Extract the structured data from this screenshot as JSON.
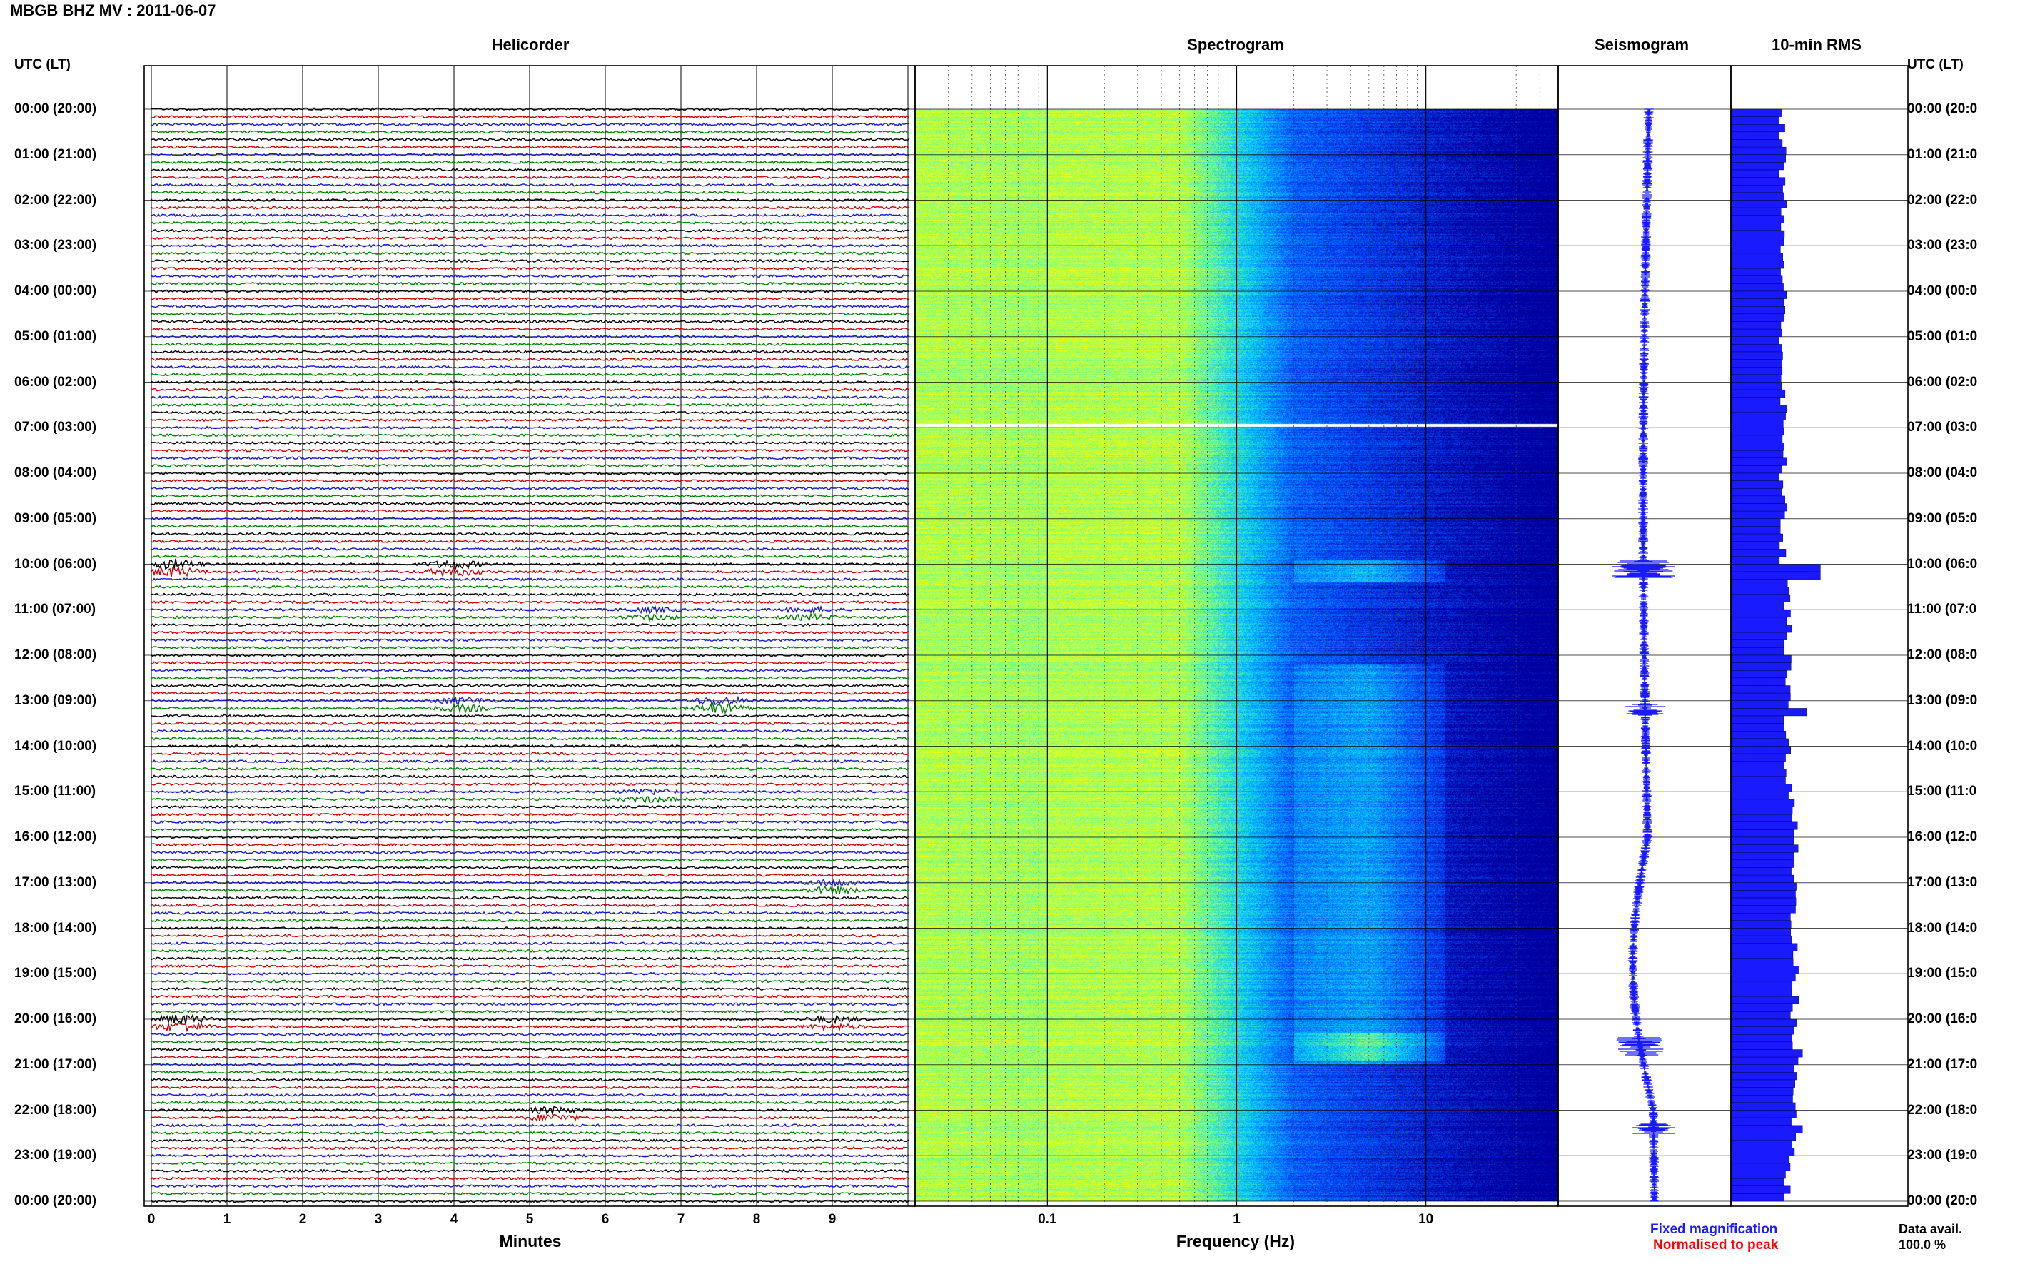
{
  "title": "MBGB BHZ MV : 2011-06-07",
  "panels": {
    "helicorder": "Helicorder",
    "spectrogram": "Spectrogram",
    "seismogram": "Seismogram",
    "rms": "10-min RMS"
  },
  "time_axis": {
    "left_header": "UTC (LT)",
    "right_header": "UTC (LT)",
    "labels": [
      "00:00 (20:00)",
      "01:00 (21:00)",
      "02:00 (22:00)",
      "03:00 (23:00)",
      "04:00 (00:00)",
      "05:00 (01:00)",
      "06:00 (02:00)",
      "07:00 (03:00)",
      "08:00 (04:00)",
      "09:00 (05:00)",
      "10:00 (06:00)",
      "11:00 (07:00)",
      "12:00 (08:00)",
      "13:00 (09:00)",
      "14:00 (10:00)",
      "15:00 (11:00)",
      "16:00 (12:00)",
      "17:00 (13:00)",
      "18:00 (14:00)",
      "19:00 (15:00)",
      "20:00 (16:00)",
      "21:00 (17:00)",
      "22:00 (18:00)",
      "23:00 (19:00)",
      "00:00 (20:00)"
    ],
    "right_labels": [
      "00:00 (20:0",
      "01:00 (21:0",
      "02:00 (22:0",
      "03:00 (23:0",
      "04:00 (00:0",
      "05:00 (01:0",
      "06:00 (02:0",
      "07:00 (03:0",
      "08:00 (04:0",
      "09:00 (05:0",
      "10:00 (06:0",
      "11:00 (07:0",
      "12:00 (08:0",
      "13:00 (09:0",
      "14:00 (10:0",
      "15:00 (11:0",
      "16:00 (12:0",
      "17:00 (13:0",
      "18:00 (14:0",
      "19:00 (15:0",
      "20:00 (16:0",
      "21:00 (17:0",
      "22:00 (18:0",
      "23:00 (19:0",
      "00:00 (20:0"
    ]
  },
  "chart_data": [
    {
      "type": "line",
      "panel": "Helicorder",
      "xlabel": "Minutes",
      "x_ticks": [
        "0",
        "1",
        "2",
        "3",
        "4",
        "5",
        "6",
        "7",
        "8",
        "9"
      ],
      "xlim": [
        0,
        10
      ],
      "trace_colors": [
        "#000000",
        "#cc0000",
        "#1a1acc",
        "#008000"
      ],
      "traces_per_hour": 6,
      "events": [
        {
          "hour_row": 10,
          "minute": 0.3,
          "amplitude": 2.2
        },
        {
          "hour_row": 10,
          "minute": 4.0,
          "amplitude": 2.0
        },
        {
          "hour_row": 11,
          "minute": 6.6,
          "amplitude": 1.2
        },
        {
          "hour_row": 11,
          "minute": 8.7,
          "amplitude": 1.2
        },
        {
          "hour_row": 13,
          "minute": 4.1,
          "amplitude": 1.6
        },
        {
          "hour_row": 13,
          "minute": 7.5,
          "amplitude": 2.2
        },
        {
          "hour_row": 15,
          "minute": 6.6,
          "amplitude": 1.2
        },
        {
          "hour_row": 17,
          "minute": 9.0,
          "amplitude": 1.6
        },
        {
          "hour_row": 20,
          "minute": 0.4,
          "amplitude": 2.2
        },
        {
          "hour_row": 20,
          "minute": 9.0,
          "amplitude": 1.4
        },
        {
          "hour_row": 22,
          "minute": 5.3,
          "amplitude": 1.6
        }
      ]
    },
    {
      "type": "heatmap",
      "panel": "Spectrogram",
      "xlabel": "Frequency (Hz)",
      "x_scale": "log",
      "xlim": [
        0.02,
        50
      ],
      "x_ticks": [
        "0.1",
        "1",
        "10"
      ],
      "colormap": [
        "#0000a0",
        "#0050ff",
        "#00c8ff",
        "#7fff7f",
        "#ffff00"
      ]
    },
    {
      "type": "line",
      "panel": "Seismogram",
      "color": "#1a1aff"
    },
    {
      "type": "bar",
      "panel": "10-min RMS",
      "color": "#1a1aff",
      "orientation": "horizontal",
      "bins_per_hour": 6,
      "hours": 24,
      "peaks": [
        {
          "hour": 10.1,
          "relative": 1.0
        },
        {
          "hour": 13.2,
          "relative": 0.85
        },
        {
          "hour": 20.6,
          "relative": 0.8
        },
        {
          "hour": 22.3,
          "relative": 0.8
        }
      ]
    }
  ],
  "legend": {
    "fixed": "Fixed magnification",
    "normalised": "Normalised to peak"
  },
  "data_avail": {
    "label": "Data avail.",
    "value": "100.0 %"
  }
}
